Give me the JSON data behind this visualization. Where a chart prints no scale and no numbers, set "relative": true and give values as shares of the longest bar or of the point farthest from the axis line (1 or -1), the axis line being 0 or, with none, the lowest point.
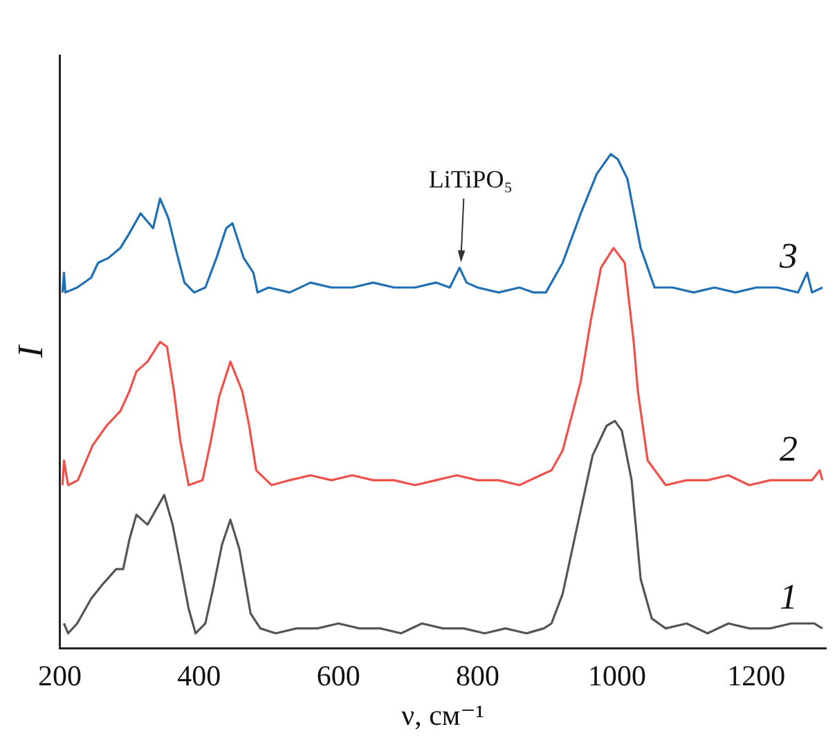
{
  "chart_data": {
    "type": "line",
    "relative": true,
    "xlabel": "ν, см⁻¹",
    "ylabel": "I",
    "xlim": [
      200,
      1300
    ],
    "xticks": [
      200,
      400,
      600,
      800,
      1000,
      1200
    ],
    "legend": false,
    "grid": false,
    "annotations": [
      {
        "text": "LiTiPO₅",
        "x": 774,
        "y": 0.77
      }
    ],
    "series": [
      {
        "name": "1",
        "color": "#555555",
        "x": [
          206,
          212,
          225,
          245,
          262,
          281,
          291,
          300,
          310,
          326,
          350,
          362,
          373,
          385,
          395,
          409,
          420,
          433,
          445,
          458,
          474,
          488,
          510,
          540,
          570,
          600,
          630,
          660,
          690,
          720,
          750,
          780,
          810,
          840,
          870,
          895,
          906,
          922,
          945,
          965,
          985,
          997,
          1007,
          1021,
          1034,
          1050,
          1070,
          1100,
          1130,
          1160,
          1190,
          1220,
          1250,
          1283,
          1295
        ],
        "values": [
          0.05,
          0.03,
          0.05,
          0.1,
          0.13,
          0.16,
          0.16,
          0.22,
          0.27,
          0.25,
          0.31,
          0.25,
          0.17,
          0.08,
          0.03,
          0.05,
          0.12,
          0.21,
          0.26,
          0.2,
          0.07,
          0.04,
          0.03,
          0.04,
          0.04,
          0.05,
          0.04,
          0.04,
          0.03,
          0.05,
          0.04,
          0.04,
          0.03,
          0.04,
          0.03,
          0.04,
          0.05,
          0.11,
          0.26,
          0.39,
          0.45,
          0.46,
          0.44,
          0.34,
          0.14,
          0.06,
          0.04,
          0.05,
          0.03,
          0.05,
          0.04,
          0.04,
          0.05,
          0.05,
          0.04
        ]
      },
      {
        "name": "2",
        "color": "#f0504a",
        "x": [
          204,
          206,
          212,
          226,
          247,
          267,
          287,
          300,
          310,
          326,
          344,
          354,
          364,
          373,
          385,
          405,
          417,
          429,
          445,
          462,
          472,
          482,
          504,
          530,
          560,
          590,
          620,
          650,
          680,
          710,
          740,
          770,
          800,
          830,
          860,
          890,
          906,
          922,
          935,
          948,
          962,
          977,
          995,
          1011,
          1024,
          1030,
          1044,
          1070,
          1100,
          1130,
          1160,
          1190,
          1220,
          1250,
          1280,
          1291,
          1295
        ],
        "values": [
          0.33,
          0.38,
          0.33,
          0.34,
          0.41,
          0.45,
          0.48,
          0.52,
          0.56,
          0.58,
          0.62,
          0.61,
          0.52,
          0.42,
          0.33,
          0.34,
          0.42,
          0.51,
          0.58,
          0.52,
          0.45,
          0.36,
          0.33,
          0.34,
          0.35,
          0.34,
          0.35,
          0.34,
          0.34,
          0.33,
          0.34,
          0.35,
          0.34,
          0.34,
          0.33,
          0.35,
          0.36,
          0.4,
          0.47,
          0.54,
          0.66,
          0.77,
          0.81,
          0.78,
          0.62,
          0.52,
          0.38,
          0.33,
          0.34,
          0.34,
          0.35,
          0.33,
          0.34,
          0.34,
          0.34,
          0.36,
          0.34
        ]
      },
      {
        "name": "3",
        "color": "#1f6fb5",
        "x": [
          204,
          206,
          208,
          225,
          245,
          255,
          270,
          287,
          300,
          316,
          334,
          344,
          356,
          368,
          379,
          393,
          409,
          425,
          439,
          448,
          464,
          478,
          484,
          500,
          530,
          560,
          590,
          620,
          650,
          680,
          710,
          740,
          760,
          774,
          784,
          800,
          830,
          860,
          880,
          898,
          922,
          948,
          971,
          991,
          1001,
          1015,
          1034,
          1054,
          1080,
          1110,
          1140,
          1170,
          1200,
          1230,
          1260,
          1273,
          1280,
          1295
        ],
        "values": [
          0.72,
          0.76,
          0.72,
          0.73,
          0.75,
          0.78,
          0.79,
          0.81,
          0.84,
          0.88,
          0.85,
          0.91,
          0.87,
          0.8,
          0.74,
          0.72,
          0.73,
          0.79,
          0.85,
          0.86,
          0.79,
          0.76,
          0.72,
          0.73,
          0.72,
          0.74,
          0.73,
          0.73,
          0.74,
          0.73,
          0.73,
          0.74,
          0.73,
          0.77,
          0.74,
          0.73,
          0.72,
          0.73,
          0.72,
          0.72,
          0.78,
          0.88,
          0.96,
          1.0,
          0.99,
          0.95,
          0.81,
          0.73,
          0.73,
          0.72,
          0.73,
          0.72,
          0.73,
          0.73,
          0.72,
          0.76,
          0.72,
          0.73
        ]
      }
    ]
  }
}
